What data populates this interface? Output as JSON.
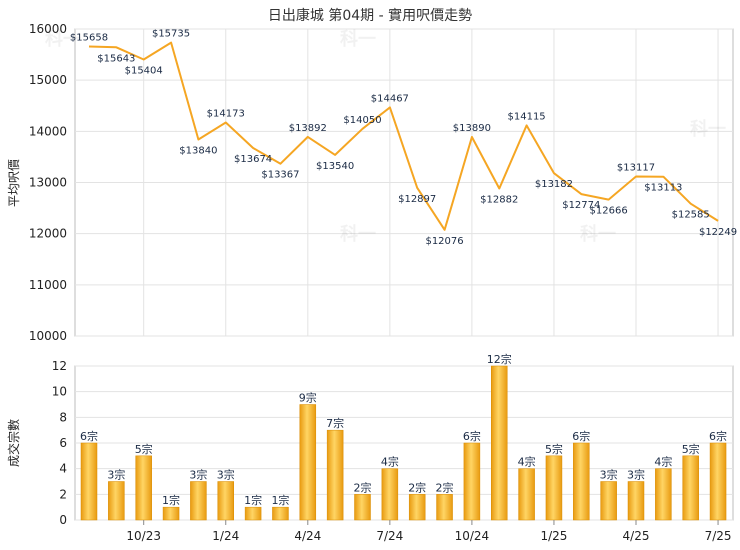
{
  "chart_data": [
    {
      "type": "line",
      "title": "日出康城 第04期 - 實用呎價走勢",
      "ylabel": "平均呎價",
      "ylim": [
        10000,
        16000
      ],
      "yticks": [
        10000,
        11000,
        12000,
        13000,
        14000,
        15000,
        16000
      ],
      "color": "#f5a623",
      "values": [
        15658,
        15643,
        15404,
        15735,
        13840,
        14173,
        13674,
        13367,
        13892,
        13540,
        14050,
        14467,
        12897,
        12076,
        13890,
        12882,
        14115,
        13182,
        12774,
        12666,
        13117,
        13113,
        12585,
        12249
      ],
      "data_labels": [
        "$15658",
        "$15643",
        "$15404",
        "$15735",
        "$13840",
        "$14173",
        "$13674",
        "$13367",
        "$13892",
        "$13540",
        "$14050",
        "$14467",
        "$12897",
        "$12076",
        "$13890",
        "$12882",
        "$14115",
        "$13182",
        "$12774",
        "$12666",
        "$13117",
        "$13113",
        "$12585",
        "$12249"
      ]
    },
    {
      "type": "bar",
      "ylabel": "成交宗數",
      "ylim": [
        0,
        12
      ],
      "yticks": [
        0,
        2,
        4,
        6,
        8,
        10,
        12
      ],
      "color": "#f5b324",
      "values": [
        6,
        3,
        5,
        1,
        3,
        3,
        1,
        1,
        9,
        7,
        2,
        4,
        2,
        2,
        6,
        12,
        4,
        5,
        6,
        3,
        3,
        4,
        5,
        6
      ],
      "data_labels": [
        "6宗",
        "3宗",
        "5宗",
        "1宗",
        "3宗",
        "3宗",
        "1宗",
        "1宗",
        "9宗",
        "7宗",
        "2宗",
        "4宗",
        "2宗",
        "2宗",
        "6宗",
        "12宗",
        "4宗",
        "5宗",
        "6宗",
        "3宗",
        "3宗",
        "4宗",
        "5宗",
        "6宗"
      ],
      "xticks": [
        {
          "index": 2,
          "label": "10/23"
        },
        {
          "index": 5,
          "label": "1/24"
        },
        {
          "index": 8,
          "label": "4/24"
        },
        {
          "index": 11,
          "label": "7/24"
        },
        {
          "index": 14,
          "label": "10/24"
        },
        {
          "index": 17,
          "label": "1/25"
        },
        {
          "index": 20,
          "label": "4/25"
        },
        {
          "index": 23,
          "label": "7/25"
        }
      ]
    }
  ],
  "watermark_text": "科一"
}
